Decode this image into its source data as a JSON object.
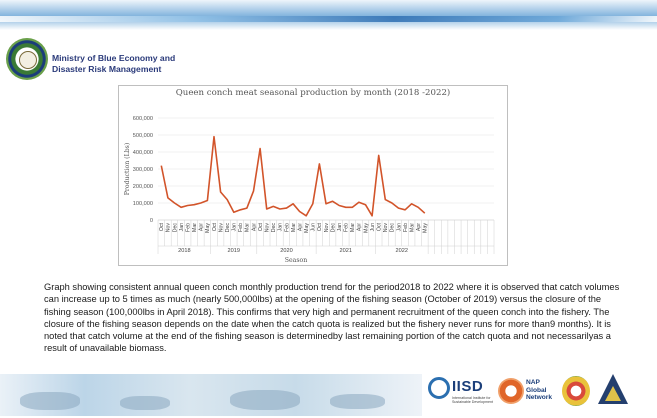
{
  "header": {
    "ministry_line1": "Ministry of Blue Economy and",
    "ministry_line2": "Disaster Risk Management"
  },
  "chart_data": {
    "type": "line",
    "title": "Queen conch meat seasonal production by month (2018 -2022)",
    "ylabel": "Production (Lbs)",
    "xlabel": "Season",
    "ylim": [
      0,
      600000
    ],
    "yticks": [
      "0",
      "100,000",
      "200,000",
      "300,000",
      "400,000",
      "500,000",
      "600,000"
    ],
    "color": "#d2542a",
    "seasons": [
      {
        "label": "2018",
        "months": [
          "Oct",
          "Nov",
          "Dec",
          "Jan",
          "Feb",
          "Mar",
          "Apr",
          "May"
        ],
        "values": [
          320000,
          130000,
          100000,
          75000,
          85000,
          90000,
          100000,
          115000
        ]
      },
      {
        "label": "2019",
        "months": [
          "Oct",
          "Nov",
          "Dec",
          "Jan",
          "Feb",
          "Mar",
          "Apr"
        ],
        "values": [
          490000,
          165000,
          120000,
          45000,
          60000,
          70000,
          170000
        ]
      },
      {
        "label": "2020",
        "months": [
          "Oct",
          "Nov",
          "Dec",
          "Jan",
          "Feb",
          "Mar",
          "Apr",
          "May",
          "Jun"
        ],
        "values": [
          420000,
          65000,
          80000,
          65000,
          70000,
          95000,
          50000,
          25000,
          95000
        ]
      },
      {
        "label": "2021",
        "months": [
          "Oct",
          "Nov",
          "Dec",
          "Jan",
          "Feb",
          "Mar",
          "Apr",
          "May",
          "Jun"
        ],
        "values": [
          330000,
          95000,
          110000,
          85000,
          75000,
          75000,
          105000,
          90000,
          25000
        ]
      },
      {
        "label": "2022",
        "months": [
          "Oct",
          "Nov",
          "Dec",
          "Jan",
          "Feb",
          "Mar",
          "Apr",
          "May"
        ],
        "values": [
          380000,
          120000,
          100000,
          70000,
          60000,
          95000,
          75000,
          40000
        ]
      }
    ],
    "empty_slots": 10
  },
  "caption": {
    "text": "Graph showing consistent annual queen conch monthly production trend for the period2018 to 2022 where it is observed that catch volumes can increase up to 5 times as much (nearly 500,000lbs) at the opening of the fishing season (October of 2019) versus the closure of the fishing season (100,000lbs in April 2018). This confirms that very high and permanent recruitment of the queen conch into the fishery. The closure of the fishing season depends on the date when the catch quota is realized but the fishery never runs for more than9 months). It is noted that catch volume at the end of the fishing season is determinedby last remaining portion of the catch quota and not necessarilyas a result of unavailable biomass."
  },
  "footer": {
    "iisd_text": "IISD",
    "iisd_sub": "International Institute for Sustainable Development",
    "nap_line1": "NAP",
    "nap_line2": "Global",
    "nap_line3": "Network"
  }
}
